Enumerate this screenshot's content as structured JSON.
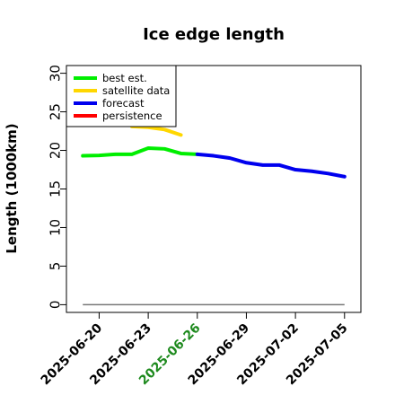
{
  "chart_data": {
    "type": "line",
    "title": "Ice edge length",
    "xlabel": "",
    "ylabel": "Length (1000km)",
    "ylim": [
      -1,
      31
    ],
    "xlim": [
      "2025-06-18",
      "2025-07-06"
    ],
    "yticks": [
      "0",
      "5",
      "10",
      "15",
      "20",
      "25",
      "30"
    ],
    "xticks": [
      {
        "label": "2025-06-20",
        "date": "2025-06-20",
        "color": "#000000"
      },
      {
        "label": "2025-06-23",
        "date": "2025-06-23",
        "color": "#000000"
      },
      {
        "label": "2025-06-26",
        "date": "2025-06-26",
        "color": "#1e8a1e"
      },
      {
        "label": "2025-06-29",
        "date": "2025-06-29",
        "color": "#000000"
      },
      {
        "label": "2025-07-02",
        "date": "2025-07-02",
        "color": "#000000"
      },
      {
        "label": "2025-07-05",
        "date": "2025-07-05",
        "color": "#000000"
      }
    ],
    "grid": false,
    "legend_position": "top-left",
    "series": [
      {
        "name": "best est.",
        "color": "#00ee00",
        "x": [
          "2025-06-19",
          "2025-06-20",
          "2025-06-21",
          "2025-06-22",
          "2025-06-23",
          "2025-06-24",
          "2025-06-25",
          "2025-06-26"
        ],
        "y": [
          19.3,
          19.35,
          19.5,
          19.5,
          20.3,
          20.2,
          19.6,
          19.5
        ]
      },
      {
        "name": "satellite data",
        "color": "#ffd700",
        "x": [
          "2025-06-22",
          "2025-06-23",
          "2025-06-24",
          "2025-06-25"
        ],
        "y": [
          23.1,
          23.0,
          22.7,
          22.0
        ]
      },
      {
        "name": "forecast",
        "color": "#0000ee",
        "x": [
          "2025-06-26",
          "2025-06-27",
          "2025-06-28",
          "2025-06-29",
          "2025-06-30",
          "2025-07-01",
          "2025-07-02",
          "2025-07-03",
          "2025-07-04",
          "2025-07-05"
        ],
        "y": [
          19.5,
          19.3,
          19.0,
          18.4,
          18.1,
          18.1,
          17.5,
          17.3,
          17.0,
          16.6
        ]
      },
      {
        "name": "persistence",
        "color": "#ff0000",
        "x": [],
        "y": []
      }
    ],
    "baseline": {
      "x": [
        "2025-06-19",
        "2025-07-05"
      ],
      "y": [
        0,
        0
      ],
      "color": "#777777"
    }
  }
}
